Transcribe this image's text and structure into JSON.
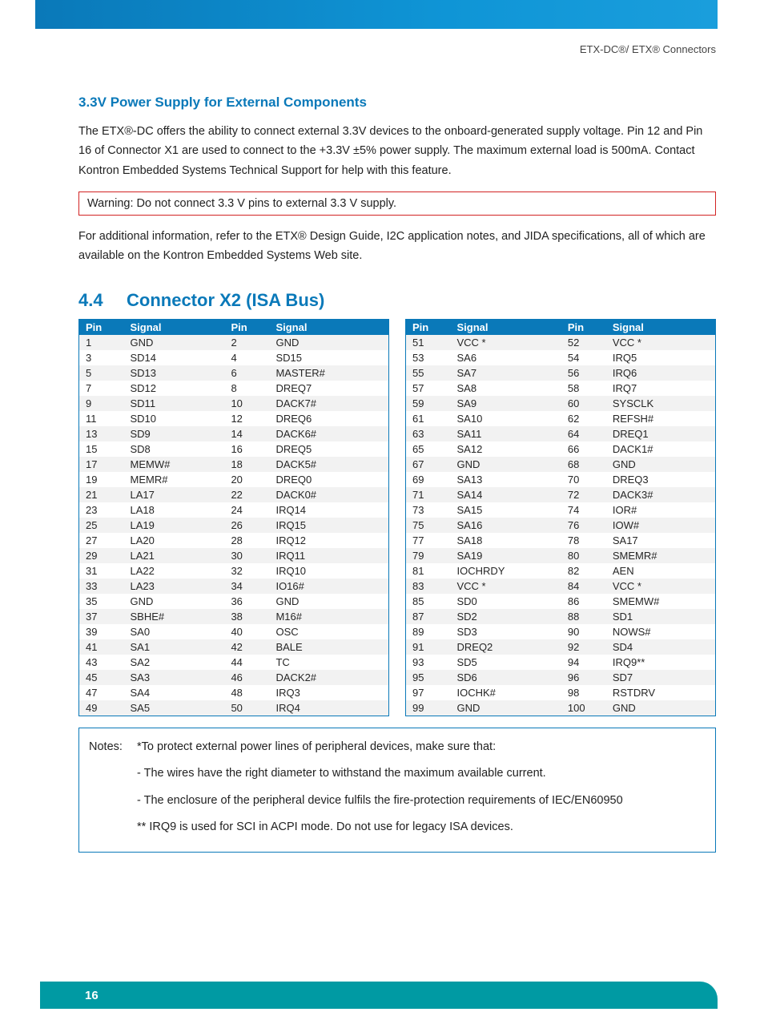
{
  "header": {
    "doc_label": "ETX-DC®/ ETX® Connectors"
  },
  "section_33v": {
    "title": "3.3V Power Supply for External Components",
    "p1": "The ETX®-DC offers the ability to connect external 3.3V devices to the onboard-generated supply voltage. Pin 12 and Pin 16 of Connector X1 are used to connect to the +3.3V ±5% power supply. The maximum external load is 500mA. Contact Kontron Embedded Systems Technical Support for help with this feature.",
    "warning": "Warning: Do not connect 3.3 V pins to external 3.3 V supply.",
    "p2": "For additional information, refer to the ETX® Design Guide, I2C application notes, and JIDA specifications, all of which are available on the Kontron Embedded Systems Web site."
  },
  "section_44": {
    "num": "4.4",
    "title": "Connector X2 (ISA Bus)",
    "columns": [
      "Pin",
      "Signal",
      "Pin",
      "Signal"
    ],
    "left_rows": [
      [
        "1",
        "GND",
        "2",
        "GND"
      ],
      [
        "3",
        "SD14",
        "4",
        "SD15"
      ],
      [
        "5",
        "SD13",
        "6",
        "MASTER#"
      ],
      [
        "7",
        "SD12",
        "8",
        "DREQ7"
      ],
      [
        "9",
        "SD11",
        "10",
        "DACK7#"
      ],
      [
        "11",
        "SD10",
        "12",
        "DREQ6"
      ],
      [
        "13",
        "SD9",
        "14",
        "DACK6#"
      ],
      [
        "15",
        "SD8",
        "16",
        "DREQ5"
      ],
      [
        "17",
        "MEMW#",
        "18",
        "DACK5#"
      ],
      [
        "19",
        "MEMR#",
        "20",
        "DREQ0"
      ],
      [
        "21",
        "LA17",
        "22",
        "DACK0#"
      ],
      [
        "23",
        "LA18",
        "24",
        "IRQ14"
      ],
      [
        "25",
        "LA19",
        "26",
        "IRQ15"
      ],
      [
        "27",
        "LA20",
        "28",
        "IRQ12"
      ],
      [
        "29",
        "LA21",
        "30",
        "IRQ11"
      ],
      [
        "31",
        "LA22",
        "32",
        "IRQ10"
      ],
      [
        "33",
        "LA23",
        "34",
        "IO16#"
      ],
      [
        "35",
        "GND",
        "36",
        "GND"
      ],
      [
        "37",
        "SBHE#",
        "38",
        "M16#"
      ],
      [
        "39",
        "SA0",
        "40",
        "OSC"
      ],
      [
        "41",
        "SA1",
        "42",
        "BALE"
      ],
      [
        "43",
        "SA2",
        "44",
        "TC"
      ],
      [
        "45",
        "SA3",
        "46",
        "DACK2#"
      ],
      [
        "47",
        "SA4",
        "48",
        "IRQ3"
      ],
      [
        "49",
        "SA5",
        "50",
        "IRQ4"
      ]
    ],
    "right_rows": [
      [
        "51",
        "VCC *",
        "52",
        "VCC *"
      ],
      [
        "53",
        "SA6",
        "54",
        "IRQ5"
      ],
      [
        "55",
        "SA7",
        "56",
        "IRQ6"
      ],
      [
        "57",
        "SA8",
        "58",
        "IRQ7"
      ],
      [
        "59",
        "SA9",
        "60",
        "SYSCLK"
      ],
      [
        "61",
        "SA10",
        "62",
        "REFSH#"
      ],
      [
        "63",
        "SA11",
        "64",
        "DREQ1"
      ],
      [
        "65",
        "SA12",
        "66",
        "DACK1#"
      ],
      [
        "67",
        "GND",
        "68",
        "GND"
      ],
      [
        "69",
        "SA13",
        "70",
        "DREQ3"
      ],
      [
        "71",
        "SA14",
        "72",
        "DACK3#"
      ],
      [
        "73",
        "SA15",
        "74",
        "IOR#"
      ],
      [
        "75",
        "SA16",
        "76",
        "IOW#"
      ],
      [
        "77",
        "SA18",
        "78",
        "SA17"
      ],
      [
        "79",
        "SA19",
        "80",
        "SMEMR#"
      ],
      [
        "81",
        "IOCHRDY",
        "82",
        "AEN"
      ],
      [
        "83",
        "VCC *",
        "84",
        "VCC *"
      ],
      [
        "85",
        "SD0",
        "86",
        "SMEMW#"
      ],
      [
        "87",
        "SD2",
        "88",
        "SD1"
      ],
      [
        "89",
        "SD3",
        "90",
        "NOWS#"
      ],
      [
        "91",
        "DREQ2",
        "92",
        "SD4"
      ],
      [
        "93",
        "SD5",
        "94",
        "IRQ9**"
      ],
      [
        "95",
        "SD6",
        "96",
        "SD7"
      ],
      [
        "97",
        "IOCHK#",
        "98",
        "RSTDRV"
      ],
      [
        "99",
        "GND",
        "100",
        "GND"
      ]
    ],
    "notes": {
      "label": "Notes:",
      "n1": "*To protect external power lines of peripheral devices, make sure that:",
      "n2": "- The wires have the right diameter to withstand the maximum available current.",
      "n3": "- The enclosure of the peripheral device fulfils the fire-protection requirements of IEC/EN60950",
      "n4": "** IRQ9 is used for SCI in ACPI mode. Do not use for legacy ISA devices."
    }
  },
  "footer": {
    "page": "16"
  },
  "style": {
    "brand_blue": "#0a79b9",
    "footer_teal": "#009aa3",
    "warning_border": "#d22424",
    "row_alt_bg": "#f2f2f2",
    "header_font_size": 13,
    "body_font_size": 14.5,
    "table_font_size": 13
  }
}
